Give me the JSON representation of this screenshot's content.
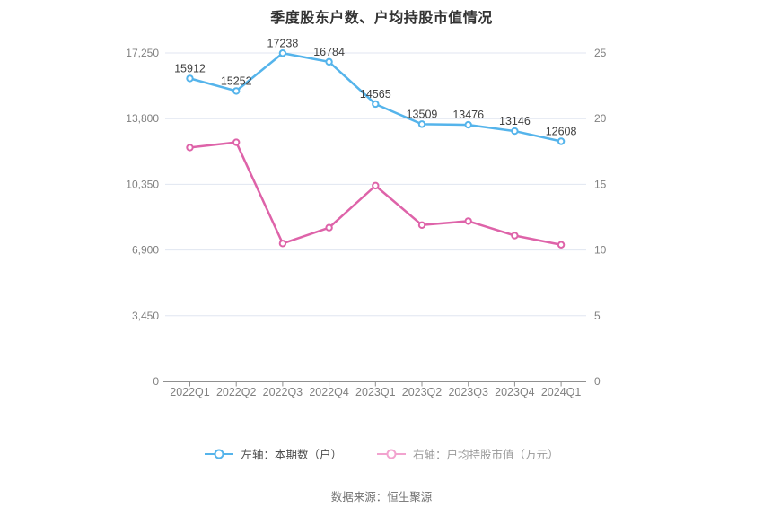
{
  "title": "季度股东户数、户均持股市值情况",
  "source": "数据来源：恒生聚源",
  "legend": {
    "items": [
      {
        "label": "左轴：本期数（户）",
        "icon": "line-circle-icon",
        "icon_color": "#55b4eb",
        "text_color": "#4d4d4d"
      },
      {
        "label": "右轴：户均持股市值（万元）",
        "icon": "line-circle-icon",
        "icon_color": "#f2a3cf",
        "text_color": "#999999"
      }
    ]
  },
  "chart_data": {
    "type": "line",
    "title": "季度股东户数、户均持股市值情况",
    "categories": [
      "2022Q1",
      "2022Q2",
      "2022Q3",
      "2022Q4",
      "2023Q1",
      "2023Q2",
      "2023Q3",
      "2023Q4",
      "2024Q1"
    ],
    "series": [
      {
        "name": "左轴：本期数（户）",
        "axis": "left",
        "color": "#55b4eb",
        "values": [
          15912,
          15252,
          17238,
          16784,
          14565,
          13509,
          13476,
          13146,
          12608
        ],
        "show_point_labels": true
      },
      {
        "name": "右轴：户均持股市值（万元）",
        "axis": "right",
        "color": "#de63a9",
        "values": [
          17.8,
          18.2,
          10.5,
          11.7,
          14.9,
          11.9,
          12.2,
          11.1,
          10.4
        ],
        "show_point_labels": false
      }
    ],
    "left_axis": {
      "min": 0,
      "max": 17250,
      "ticks": [
        0,
        3450,
        6900,
        10350,
        13800,
        17250
      ],
      "tick_labels": [
        "0",
        "3,450",
        "6,900",
        "10,350",
        "13,800",
        "17,250"
      ]
    },
    "right_axis": {
      "min": 0,
      "max": 25,
      "ticks": [
        0,
        5,
        10,
        15,
        20,
        25
      ],
      "tick_labels": [
        "0",
        "5",
        "10",
        "15",
        "20",
        "25"
      ]
    },
    "grid": true,
    "legend_position": "bottom"
  },
  "colors": {
    "background": "#ffffff",
    "title": "#333333",
    "gridline": "#e0e6f1",
    "axis_line": "#909090",
    "axis_tick_label": "#808080",
    "point_label": "#404040",
    "series_blue": "#55b4eb",
    "series_pink": "#de63a9"
  }
}
